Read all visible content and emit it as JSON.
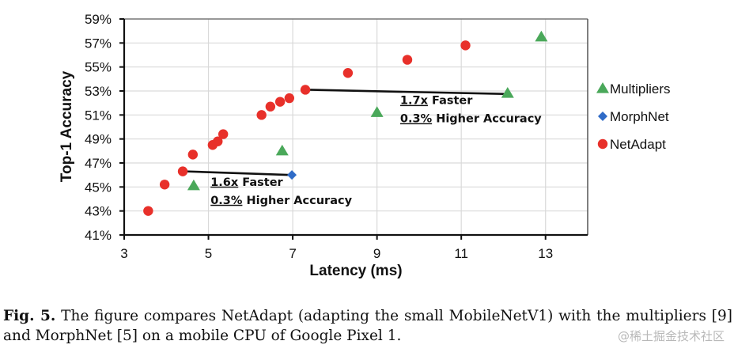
{
  "chart_data": {
    "type": "scatter",
    "title": "",
    "xlabel": "Latency (ms)",
    "ylabel": "Top-1 Accuracy",
    "xlim": [
      3,
      14
    ],
    "ylim": [
      41,
      59
    ],
    "x_ticks": [
      3,
      5,
      7,
      9,
      11,
      13
    ],
    "x_tick_labels": [
      "3",
      "5",
      "7",
      "9",
      "11",
      "13"
    ],
    "y_ticks": [
      41,
      43,
      45,
      47,
      49,
      51,
      53,
      55,
      57,
      59
    ],
    "y_tick_labels": [
      "41%",
      "43%",
      "45%",
      "47%",
      "49%",
      "51%",
      "53%",
      "55%",
      "57%",
      "59%"
    ],
    "grid": true,
    "legend_position": "right",
    "series": [
      {
        "name": "Multipliers",
        "marker": "triangle",
        "color": "#4aa85a",
        "points": [
          {
            "x": 4.65,
            "y": 45.1
          },
          {
            "x": 6.75,
            "y": 48.0
          },
          {
            "x": 9.0,
            "y": 51.2
          },
          {
            "x": 12.1,
            "y": 52.8
          },
          {
            "x": 12.9,
            "y": 57.5
          }
        ]
      },
      {
        "name": "MorphNet",
        "marker": "diamond",
        "color": "#2f6bc7",
        "points": [
          {
            "x": 6.98,
            "y": 46.0
          }
        ]
      },
      {
        "name": "NetAdapt",
        "marker": "circle",
        "color": "#e8302a",
        "points": [
          {
            "x": 3.57,
            "y": 43.0
          },
          {
            "x": 3.96,
            "y": 45.2
          },
          {
            "x": 4.39,
            "y": 46.3
          },
          {
            "x": 4.63,
            "y": 47.7
          },
          {
            "x": 5.1,
            "y": 48.5
          },
          {
            "x": 5.22,
            "y": 48.8
          },
          {
            "x": 5.35,
            "y": 49.4
          },
          {
            "x": 6.26,
            "y": 51.0
          },
          {
            "x": 6.47,
            "y": 51.7
          },
          {
            "x": 6.7,
            "y": 52.1
          },
          {
            "x": 6.92,
            "y": 52.4
          },
          {
            "x": 7.3,
            "y": 53.1
          },
          {
            "x": 8.31,
            "y": 54.5
          },
          {
            "x": 9.72,
            "y": 55.6
          },
          {
            "x": 11.1,
            "y": 56.8
          }
        ]
      }
    ],
    "annotations": [
      {
        "arrow_from": {
          "x": 6.95,
          "y": 46.0
        },
        "arrow_to": {
          "x": 4.45,
          "y": 46.3
        },
        "line1_value": "1.6x",
        "line1_rest": " Faster",
        "line2_value": "0.3%",
        "line2_rest": " Higher Accuracy",
        "text_anchor": {
          "x": 5.05,
          "y": 45.1
        }
      },
      {
        "arrow_from": {
          "x": 12.05,
          "y": 52.75
        },
        "arrow_to": {
          "x": 7.38,
          "y": 53.1
        },
        "line1_value": "1.7x",
        "line1_rest": " Faster",
        "line2_value": "0.3%",
        "line2_rest": " Higher Accuracy",
        "text_anchor": {
          "x": 9.55,
          "y": 51.9
        }
      }
    ]
  },
  "caption": {
    "label": "Fig. 5.",
    "text": " The figure compares NetAdapt (adapting the small MobileNetV1) with the multipliers [9] and MorphNet [5] on a mobile CPU of Google Pixel 1."
  },
  "watermark": "@稀土掘金技术社区"
}
